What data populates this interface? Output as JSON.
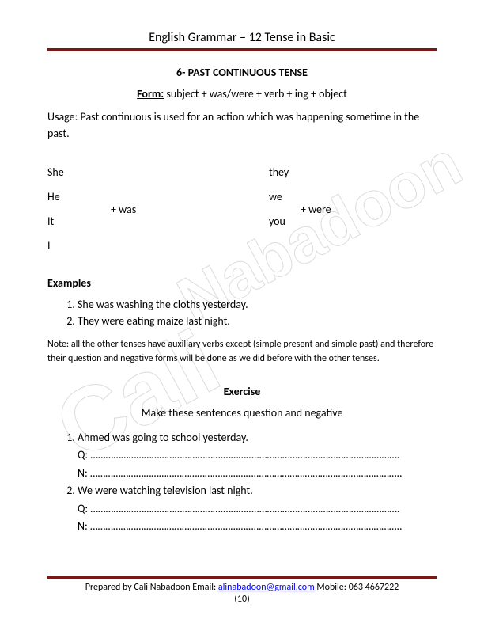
{
  "header": {
    "title": "English Grammar – 12 Tense in Basic"
  },
  "section": {
    "number_title": "6- PAST CONTINUOUS TENSE",
    "form_label": "Form:",
    "form_text": " subject + was/were + verb + ing + object",
    "usage": "Usage: Past continuous is used for an action which was happening sometime in the past."
  },
  "pronouns": {
    "col1": [
      "She",
      "He",
      "It",
      "I"
    ],
    "aux1": "+ was",
    "col2": [
      "they",
      "we",
      "you"
    ],
    "aux2": "+ were"
  },
  "examples": {
    "heading": "Examples",
    "items": [
      "She was washing the cloths yesterday.",
      "They were eating maize last night."
    ]
  },
  "note": "Note: all the other tenses have auxiliary verbs except (simple present and simple  past) and therefore their question and negative forms will be done as we did before  with the other tenses.",
  "exercise": {
    "heading": "Exercise",
    "instruction": "Make these sentences question and negative",
    "items": [
      {
        "text": "Ahmed was going to school yesterday.",
        "q": "Q: …………………………………………….…………..……………………………………………….",
        "n": "N: …………………………………………….…………..……………………………………………….."
      },
      {
        "text": "We were watching television last night.",
        "q": "Q: …………………………………………….…………..……………………………………………….",
        "n": "N: …………………………………………….…………..……………………………………………….."
      }
    ]
  },
  "footer": {
    "prefix": "Prepared by Cali Nabadoon Email: ",
    "email": "alinabadoon@gmail.com",
    "suffix": " Mobile: 063 4667222",
    "page": "(10)"
  },
  "watermark": {
    "line1": "Cali",
    "line2": "Nabadoon"
  },
  "colors": {
    "rule": "#7a1818"
  }
}
